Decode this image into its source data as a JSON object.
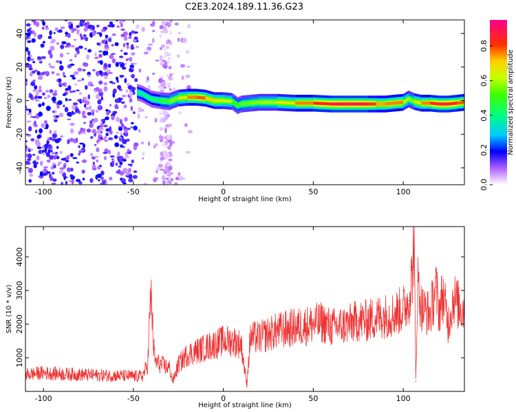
{
  "title": "C2E3.2024.189.11.36.G23",
  "chart_data": [
    {
      "type": "heatmap",
      "xlabel": "Height of straight line (km)",
      "ylabel": "Frequency (Hz)",
      "xlim": [
        -110,
        134
      ],
      "ylim": [
        -50,
        48
      ],
      "xticks": [
        -100,
        -50,
        0,
        50,
        100
      ],
      "yticks": [
        -40,
        -20,
        0,
        20,
        40
      ],
      "colorbar": {
        "label": "Normalized spectral amplitude",
        "range": [
          0.0,
          0.95
        ],
        "ticks": [
          0.0,
          0.2,
          0.4,
          0.6,
          0.8
        ],
        "colormap": "rainbow: white → violet → blue → cyan → green → yellow → orange → red → magenta"
      },
      "ridge": {
        "description": "Narrow high-amplitude band near 0 Hz starting at about -48 km; scattered low-amplitude noise for heights below -48 km",
        "x": [
          -48,
          -45,
          -40,
          -35,
          -30,
          -25,
          -20,
          -15,
          -10,
          -5,
          0,
          5,
          8,
          10,
          15,
          20,
          30,
          40,
          50,
          60,
          70,
          80,
          85,
          90,
          95,
          100,
          103,
          106,
          110,
          115,
          120,
          125,
          130,
          134
        ],
        "y": [
          5,
          4,
          1,
          0,
          -0.5,
          1.5,
          2,
          2,
          1.5,
          0,
          0,
          -0.5,
          -3,
          -2,
          -1.5,
          -1,
          -1,
          -1.5,
          -1.5,
          -2,
          -2,
          -2,
          -2,
          -2,
          -1.5,
          -1,
          1,
          -0.5,
          -1.5,
          -1.5,
          -2,
          -2,
          -1.5,
          -1
        ],
        "amplitude": [
          0.35,
          0.45,
          0.4,
          0.5,
          0.55,
          0.65,
          0.75,
          0.85,
          0.8,
          0.7,
          0.7,
          0.6,
          0.5,
          0.55,
          0.6,
          0.6,
          0.65,
          0.75,
          0.85,
          0.9,
          0.95,
          0.9,
          0.8,
          0.75,
          0.85,
          0.75,
          0.55,
          0.65,
          0.75,
          0.85,
          0.9,
          0.9,
          0.85,
          0.8
        ]
      }
    },
    {
      "type": "line",
      "xlabel": "Height of straight line (km)",
      "ylabel": "SNR (10 * v/v)",
      "xlim": [
        -110,
        134
      ],
      "ylim": [
        0,
        4900
      ],
      "xticks": [
        -100,
        -50,
        0,
        50,
        100
      ],
      "yticks": [
        1000,
        2000,
        3000,
        4000
      ],
      "color": "#ee3333",
      "series": [
        {
          "x": [
            -110,
            -100,
            -90,
            -80,
            -70,
            -60,
            -50,
            -45,
            -42,
            -41,
            -40,
            -39,
            -38,
            -35,
            -30,
            -28,
            -25,
            -20,
            -15,
            -10,
            -5,
            0,
            5,
            10,
            13,
            15,
            20,
            25,
            30,
            35,
            40,
            45,
            50,
            55,
            60,
            65,
            70,
            75,
            80,
            85,
            90,
            95,
            100,
            103,
            105,
            106,
            107,
            108,
            110,
            112,
            115,
            118,
            120,
            122,
            125,
            128,
            130,
            134
          ],
          "y": [
            500,
            550,
            520,
            500,
            480,
            470,
            450,
            450,
            800,
            2200,
            2900,
            1500,
            900,
            800,
            700,
            300,
            800,
            1100,
            1200,
            1300,
            1400,
            1500,
            1500,
            1400,
            200,
            1600,
            1600,
            1700,
            1800,
            1850,
            1900,
            1950,
            2000,
            2050,
            1900,
            1950,
            2000,
            2100,
            2100,
            2200,
            2250,
            2300,
            2450,
            2700,
            3500,
            4500,
            300,
            3300,
            2500,
            2400,
            2300,
            3100,
            2400,
            2900,
            2000,
            2800,
            2600,
            2400
          ]
        }
      ]
    }
  ]
}
